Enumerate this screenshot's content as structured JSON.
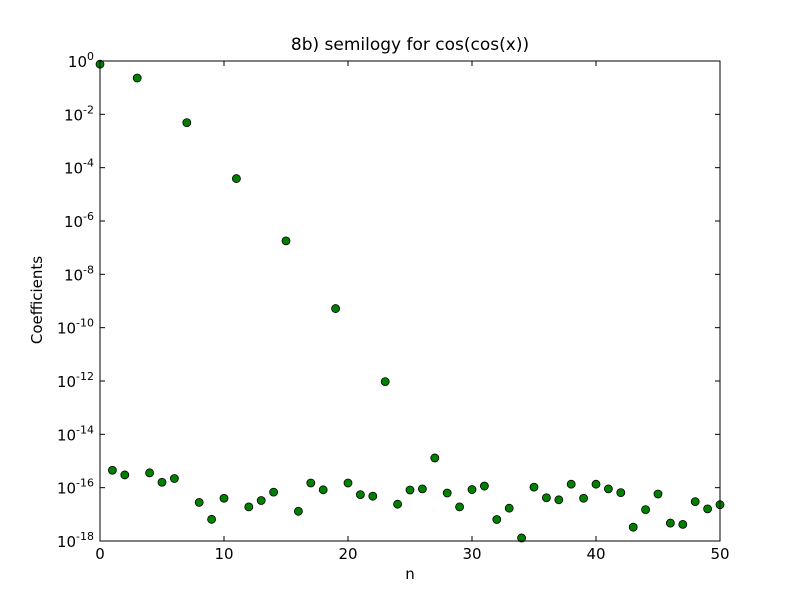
{
  "chart_data": {
    "type": "scatter",
    "title": "8b) semilogy for cos(cos(x))",
    "xlabel": "n",
    "ylabel": "Coefficients",
    "xlim": [
      0,
      50
    ],
    "xticks": [
      0,
      10,
      20,
      30,
      40,
      50
    ],
    "yscale": "log",
    "ylim": [
      1e-18,
      1
    ],
    "yticks": [
      {
        "base": "10",
        "exp": "0"
      },
      {
        "base": "10",
        "exp": "-2"
      },
      {
        "base": "10",
        "exp": "-4"
      },
      {
        "base": "10",
        "exp": "-6"
      },
      {
        "base": "10",
        "exp": "-8"
      },
      {
        "base": "10",
        "exp": "-10"
      },
      {
        "base": "10",
        "exp": "-12"
      },
      {
        "base": "10",
        "exp": "-14"
      },
      {
        "base": "10",
        "exp": "-16"
      },
      {
        "base": "10",
        "exp": "-18"
      }
    ],
    "grid": false,
    "marker_color": "#008000",
    "marker_edge": "#000000",
    "series": [
      {
        "x": [
          0,
          1,
          2,
          3,
          4,
          5,
          6,
          7,
          8,
          9,
          10,
          11,
          12,
          13,
          14,
          15,
          16,
          17,
          18,
          19,
          20,
          21,
          22,
          23,
          24,
          25,
          26,
          27,
          28,
          29,
          30,
          31,
          32,
          33,
          34,
          35,
          36,
          37,
          38,
          39,
          40,
          41,
          42,
          43,
          44,
          45,
          46,
          47,
          48,
          49,
          50
        ],
        "y": [
          0.76,
          4.5e-16,
          3e-16,
          0.23,
          3.6e-16,
          1.6e-16,
          2.2e-16,
          0.0049,
          2.8e-17,
          6.5e-18,
          4e-17,
          3.9e-05,
          1.9e-17,
          3.3e-17,
          6.8e-17,
          1.8e-07,
          1.3e-17,
          1.5e-16,
          8.3e-17,
          5.2e-10,
          1.5e-16,
          5.5e-17,
          4.8e-17,
          9.5e-13,
          2.4e-17,
          8.2e-17,
          9e-17,
          1.3e-15,
          6.3e-17,
          1.9e-17,
          8.5e-17,
          1.15e-16,
          6.4e-18,
          1.7e-17,
          1.3e-18,
          1.05e-16,
          4.2e-17,
          3.5e-17,
          1.35e-16,
          4e-17,
          1.35e-16,
          9e-17,
          6.5e-17,
          3.3e-18,
          1.5e-17,
          5.8e-17,
          4.7e-18,
          4.2e-18,
          3e-17,
          1.6e-17,
          2.3e-17
        ]
      }
    ]
  }
}
